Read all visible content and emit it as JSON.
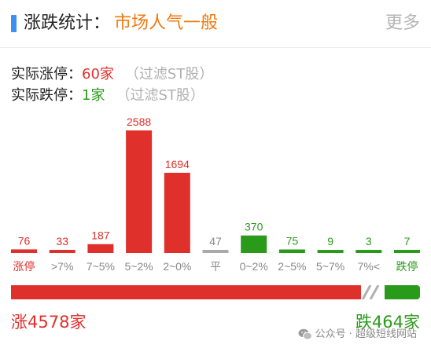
{
  "header": {
    "title": "涨跌统计",
    "colon": "：",
    "sentiment": "市场人气一般",
    "more_label": "更多"
  },
  "limit_stats": {
    "up_label": "实际涨停：",
    "up_value": "60家",
    "down_label": "实际跌停：",
    "down_value": "1家",
    "filter_note": "（过滤ST股）"
  },
  "chart_data": {
    "type": "bar",
    "categories": [
      "涨停",
      ">7%",
      "7~5%",
      "5~2%",
      "2~0%",
      "平",
      "0~2%",
      "2~5%",
      "5~7%",
      "7%<",
      "跌停"
    ],
    "values": [
      76,
      33,
      187,
      2588,
      1694,
      47,
      370,
      75,
      9,
      3,
      7
    ],
    "bar_colors": [
      "#e0302c",
      "#e0302c",
      "#e0302c",
      "#e0302c",
      "#e0302c",
      "#aaaaaa",
      "#2a9a1a",
      "#2a9a1a",
      "#2a9a1a",
      "#2a9a1a",
      "#2a9a1a"
    ],
    "label_colors": [
      "#e0302c",
      "#e0302c",
      "#e0302c",
      "#e0302c",
      "#e0302c",
      "#888888",
      "#2a9a1a",
      "#2a9a1a",
      "#2a9a1a",
      "#2a9a1a",
      "#2a9a1a"
    ],
    "category_colors": [
      "#e0302c",
      "#888888",
      "#888888",
      "#888888",
      "#888888",
      "#888888",
      "#888888",
      "#888888",
      "#888888",
      "#888888",
      "#2a9a1a"
    ],
    "ylim": [
      0,
      2588
    ],
    "grid": false
  },
  "breadth": {
    "up_count": 4578,
    "down_count": 464,
    "up_label": "涨4578家",
    "down_label": "跌464家"
  },
  "watermark": {
    "text": "公众号 · 超级短线网站",
    "icon": "wechat-icon"
  },
  "colors": {
    "accent_blue": "#3d8ef0",
    "sentiment_orange": "#f07a10",
    "up_red": "#e0302c",
    "down_green": "#2a9a1a",
    "flat_gray": "#aaaaaa"
  }
}
